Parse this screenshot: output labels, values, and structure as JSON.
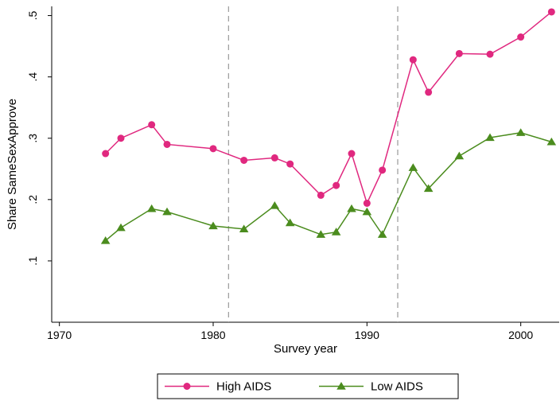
{
  "chart_data": {
    "type": "line",
    "title": "",
    "xlabel": "Survey year",
    "ylabel": "Share SameSexApprove",
    "xlim": [
      1969.5,
      2002.5
    ],
    "ylim": [
      0.0,
      0.515
    ],
    "x_ticks": [
      1970,
      1980,
      1990,
      2000
    ],
    "x_tick_labels": [
      "1970",
      "1980",
      "1990",
      "2000"
    ],
    "y_ticks": [
      0.1,
      0.2,
      0.3,
      0.4,
      0.5
    ],
    "y_tick_labels": [
      ".1",
      ".2",
      ".3",
      ".4",
      ".5"
    ],
    "vlines": [
      1981,
      1992
    ],
    "grid": false,
    "legend_position": "bottom",
    "series": [
      {
        "name": "High AIDS",
        "color": "#e0287f",
        "marker": "circle",
        "x": [
          1973,
          1974,
          1976,
          1977,
          1980,
          1982,
          1984,
          1985,
          1987,
          1988,
          1989,
          1990,
          1991,
          1993,
          1994,
          1996,
          1998,
          2000,
          2002
        ],
        "values": [
          0.275,
          0.3,
          0.322,
          0.29,
          0.283,
          0.264,
          0.268,
          0.258,
          0.207,
          0.223,
          0.275,
          0.194,
          0.248,
          0.428,
          0.375,
          0.438,
          0.437,
          0.465,
          0.506
        ]
      },
      {
        "name": "Low AIDS",
        "color": "#4b8c1e",
        "marker": "triangle",
        "x": [
          1973,
          1974,
          1976,
          1977,
          1980,
          1982,
          1984,
          1985,
          1987,
          1988,
          1989,
          1990,
          1991,
          1993,
          1994,
          1996,
          1998,
          2000,
          2002
        ],
        "values": [
          0.133,
          0.154,
          0.185,
          0.18,
          0.157,
          0.152,
          0.19,
          0.162,
          0.143,
          0.147,
          0.185,
          0.18,
          0.143,
          0.252,
          0.218,
          0.271,
          0.301,
          0.309,
          0.294
        ]
      }
    ]
  }
}
